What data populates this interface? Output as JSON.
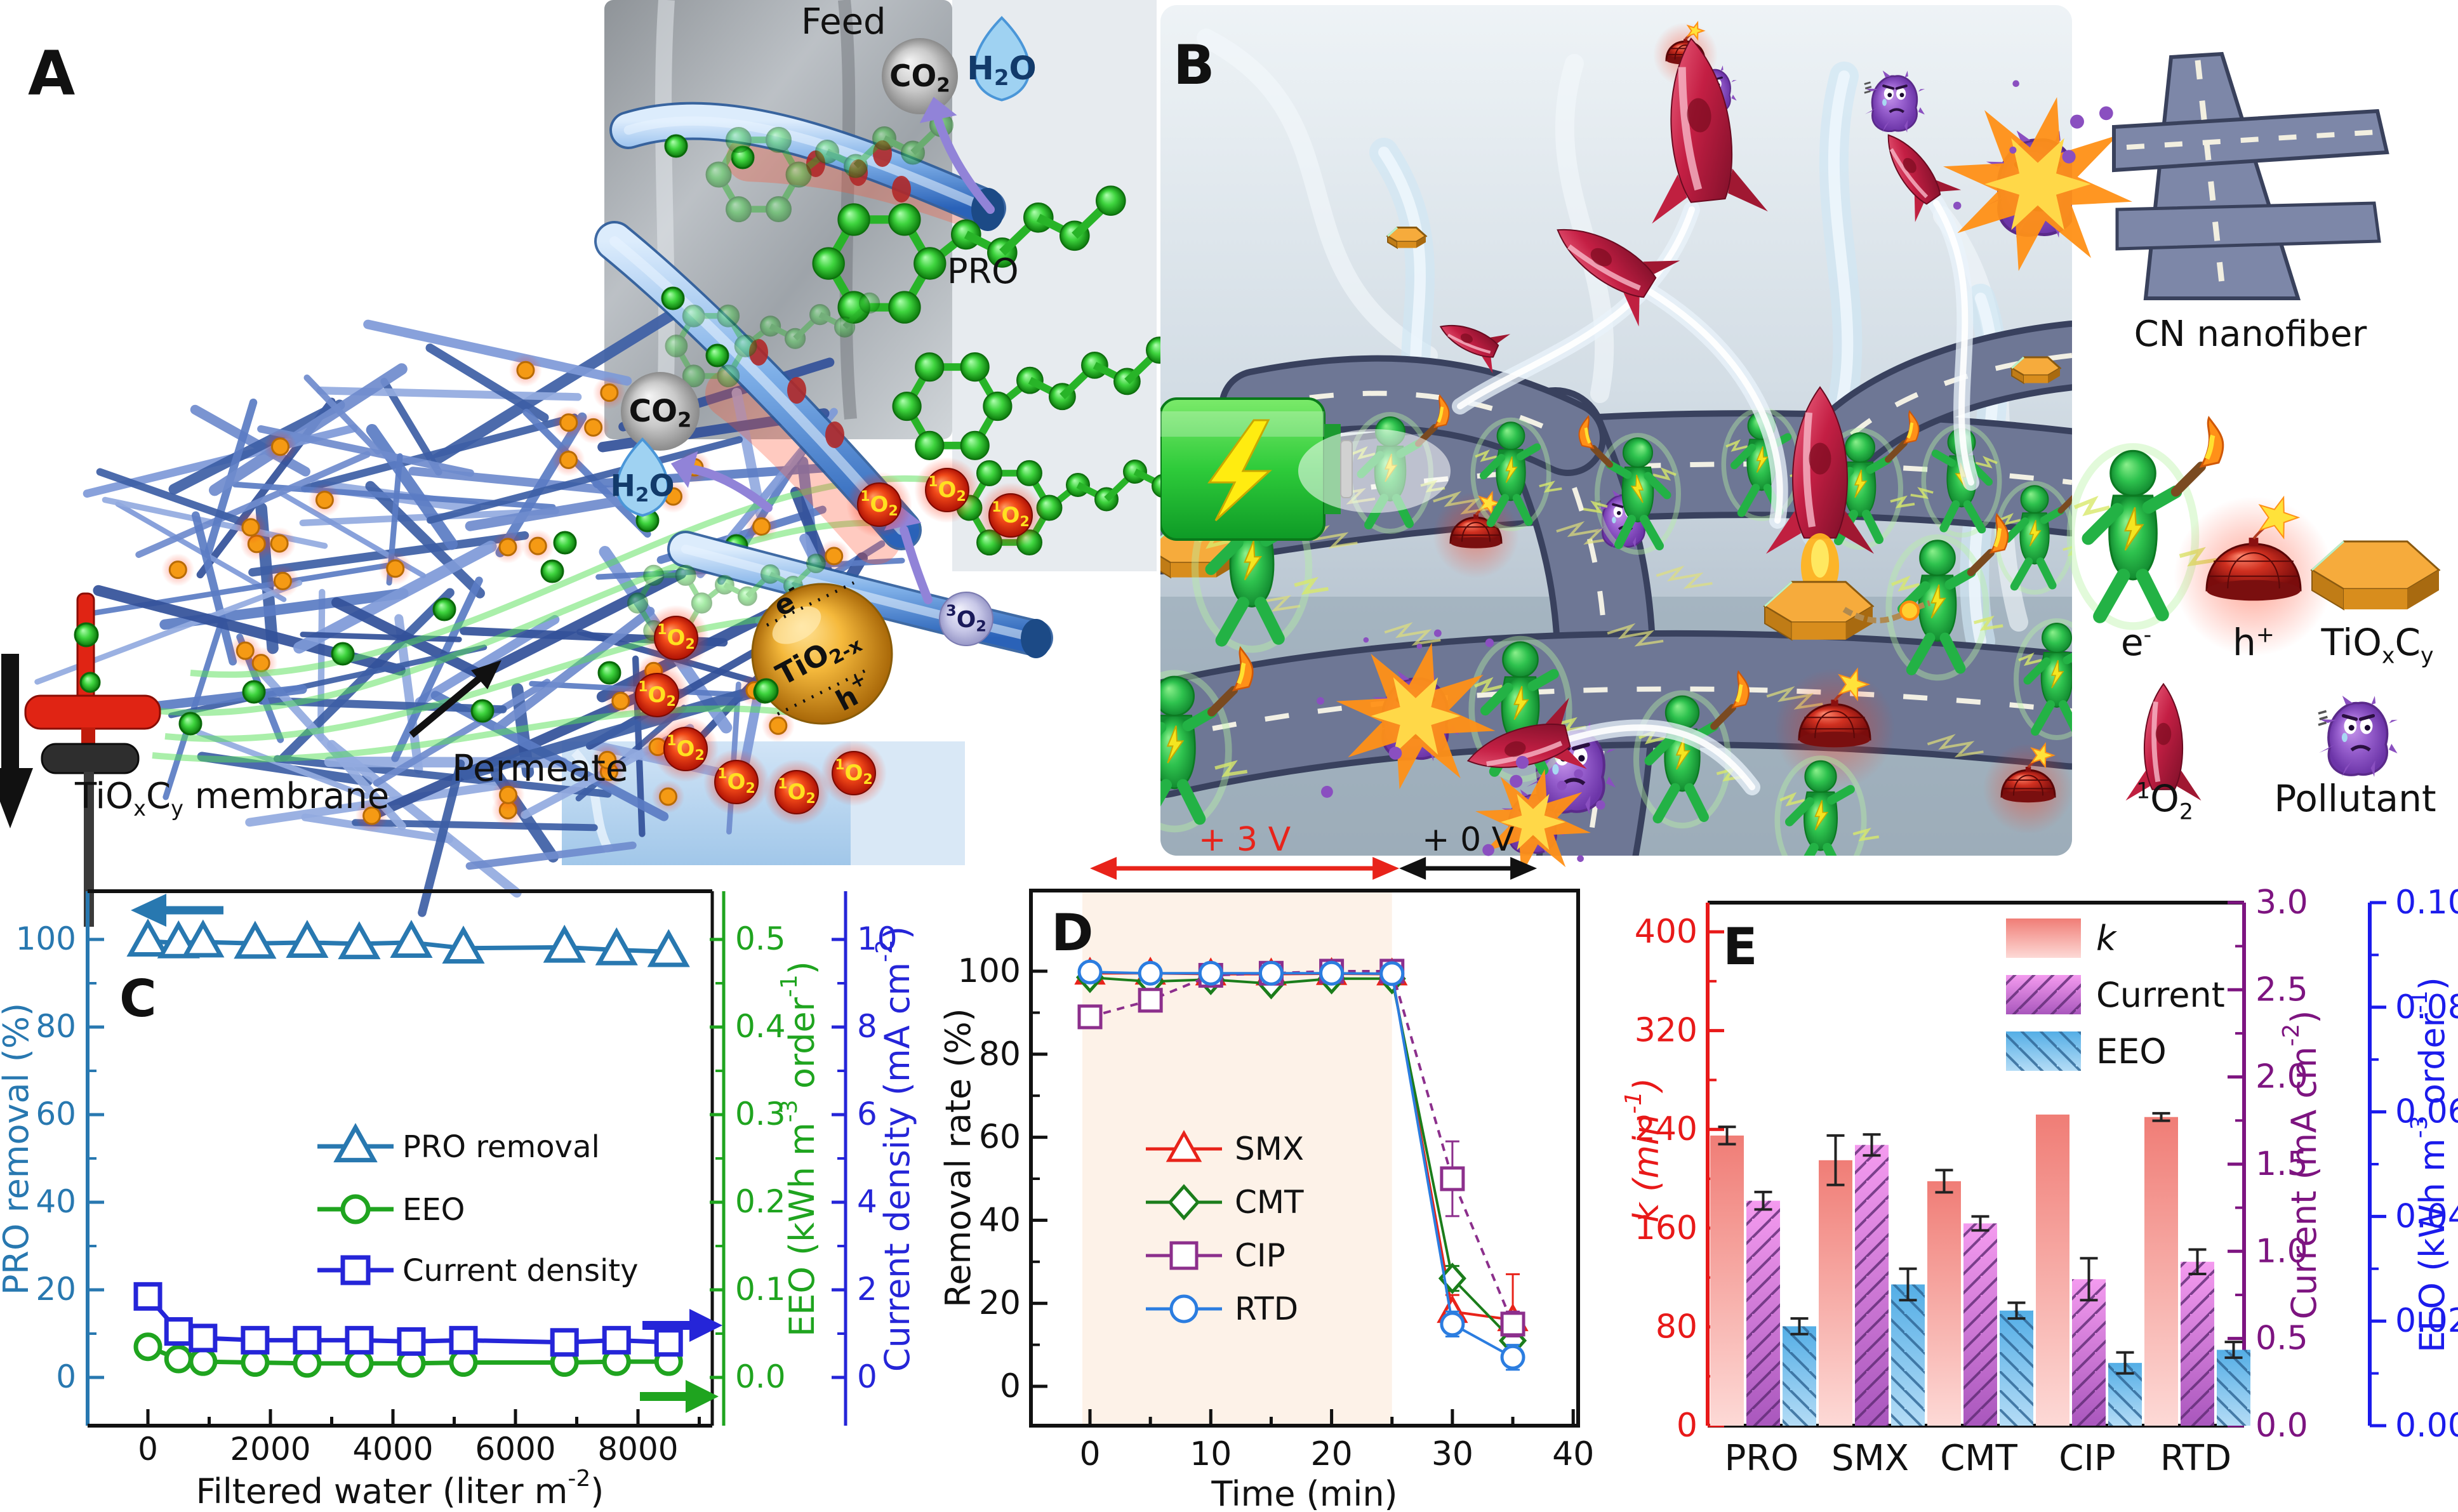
{
  "figure": {
    "panel_letters": {
      "a": "A",
      "b": "B",
      "c": "C",
      "d": "D",
      "e": "E"
    }
  },
  "panelA": {
    "feed": "Feed",
    "permeate": "Permeate",
    "membrane_label": "TiO_{x}C_{y} membrane",
    "pro": "PRO",
    "co2": "CO_{2}",
    "h2o": "H_{2}O",
    "tio2x": "TiO_{2-x}",
    "electron": "e^{-}",
    "hole": "h^{+}",
    "singlet_oxygen": "^{1}O_{2}",
    "triplet_oxygen": "^{3}O_{2}"
  },
  "panelB": {
    "legend": {
      "cn_nanofiber": "CN nanofiber",
      "electron": "e^{-}",
      "hole": "h^{+}",
      "tioxcy": "TiO_{x}C_{y}",
      "singlet_oxygen": "^{1}O_{2}",
      "pollutant": "Pollutant"
    }
  },
  "chart_data": [
    {
      "id": "C",
      "type": "line",
      "xlabel": "Filtered water (liter m^{-2})",
      "x_ticks": [
        0,
        2000,
        4000,
        6000,
        8000
      ],
      "x": [
        0,
        500,
        900,
        1750,
        2600,
        3450,
        4300,
        5150,
        6800,
        7650,
        8500
      ],
      "axes": {
        "left": {
          "label": "PRO removal (%)",
          "color": "#2878b0",
          "ticks": [
            0,
            20,
            40,
            60,
            80,
            100
          ]
        },
        "green": {
          "label": "EEO (kWh m^{-3} order^{-1})",
          "color": "#1fa41f",
          "ticks": [
            "0.0",
            "0.1",
            "0.2",
            "0.3",
            "0.4",
            "0.5"
          ]
        },
        "blue": {
          "label": "Current density (mA cm^{-2})",
          "color": "#2525d8",
          "ticks": [
            0,
            2,
            4,
            6,
            8,
            10
          ]
        }
      },
      "series": [
        {
          "name": "PRO removal",
          "axis": "left",
          "color": "#2878b0",
          "marker": "triangle",
          "values": [
            99.6,
            99.2,
            99.4,
            99.1,
            99.3,
            99.0,
            99.3,
            98.0,
            98.2,
            97.6,
            97.2
          ]
        },
        {
          "name": "EEO",
          "axis": "green",
          "color": "#1fa41f",
          "marker": "circle",
          "values": [
            0.035,
            0.021,
            0.018,
            0.017,
            0.016,
            0.016,
            0.016,
            0.017,
            0.017,
            0.018,
            0.018
          ]
        },
        {
          "name": "Current density",
          "axis": "blue",
          "color": "#2525d8",
          "marker": "square",
          "values": [
            1.85,
            1.05,
            0.9,
            0.85,
            0.85,
            0.85,
            0.82,
            0.85,
            0.8,
            0.85,
            0.8
          ]
        }
      ],
      "legend_order": [
        "PRO removal",
        "EEO",
        "Current density"
      ]
    },
    {
      "id": "D",
      "type": "line",
      "xlabel": "Time (min)",
      "ylabel": "Removal rate (%)",
      "x_ticks": [
        0,
        10,
        20,
        30,
        40
      ],
      "y_ticks": [
        0,
        20,
        40,
        60,
        80,
        100
      ],
      "x": [
        0,
        5,
        10,
        15,
        20,
        25,
        30,
        35
      ],
      "shaded_region": {
        "from": 0,
        "to": 25,
        "color": "#fdf2e8"
      },
      "annotations": [
        {
          "text": "+ 3 V",
          "color": "#e8231a",
          "from": 0,
          "to": 25.6
        },
        {
          "text": "+ 0 V",
          "color": "#111111",
          "from": 25.6,
          "to": 37
        }
      ],
      "series": [
        {
          "name": "SMX",
          "color": "#e8231a",
          "marker": "triangle",
          "dash": "",
          "values": [
            99.5,
            99.5,
            99.3,
            99.3,
            99.4,
            99.3,
            18,
            16
          ],
          "errors": [
            0,
            0,
            0,
            0,
            0,
            0,
            4,
            11
          ]
        },
        {
          "name": "CMT",
          "color": "#1b7d1b",
          "marker": "diamond",
          "dash": "",
          "values": [
            98.5,
            97.5,
            98.0,
            97.0,
            98.2,
            98.2,
            26,
            11
          ],
          "errors": [
            0,
            0,
            0,
            0,
            0,
            0,
            3,
            2
          ]
        },
        {
          "name": "CIP",
          "color": "#8c2f8c",
          "marker": "square",
          "dash": "12 10",
          "values": [
            89,
            93,
            99,
            99.5,
            100,
            100,
            50,
            15
          ],
          "errors": [
            2,
            2,
            0,
            0,
            0,
            0,
            9,
            3
          ]
        },
        {
          "name": "RTD",
          "color": "#2b7de0",
          "marker": "circle",
          "dash": "",
          "values": [
            99.8,
            99.5,
            99.5,
            99.5,
            99.5,
            99.4,
            15,
            7
          ],
          "errors": [
            0,
            0,
            0,
            0,
            0,
            0,
            3,
            3
          ]
        }
      ]
    },
    {
      "id": "E",
      "type": "bar",
      "categories": [
        "PRO",
        "SMX",
        "CMT",
        "CIP",
        "RTD"
      ],
      "axes": {
        "red": {
          "label": "k (min^{-1})",
          "italic_k": true,
          "color": "#e81919",
          "ticks": [
            0,
            80,
            160,
            240,
            320,
            400
          ]
        },
        "purple": {
          "label": "Current (mA cm^{-2})",
          "color": "#7d1480",
          "ticks": [
            "0.0",
            "0.5",
            "1.0",
            "1.5",
            "2.0",
            "2.5",
            "3.0"
          ]
        },
        "blue": {
          "label": "EEO (kWh m^{-3} order^{-1})",
          "color": "#1b1bec",
          "ticks": [
            "0.00",
            "0.02",
            "0.04",
            "0.06",
            "0.08",
            "0.10"
          ]
        }
      },
      "series": [
        {
          "name": "k",
          "axis": "red",
          "style": "salmon",
          "values": [
            235,
            215,
            198,
            252,
            250
          ],
          "errors": [
            7,
            20,
            9,
            0,
            3
          ]
        },
        {
          "name": "Current",
          "axis": "purple",
          "style": "magenta-hatch",
          "values": [
            1.29,
            1.61,
            1.16,
            0.84,
            0.94
          ],
          "errors": [
            0.05,
            0.06,
            0.04,
            0.12,
            0.07
          ]
        },
        {
          "name": "EEO",
          "axis": "blue",
          "style": "blue-hatch",
          "values": [
            0.019,
            0.027,
            0.022,
            0.012,
            0.0145
          ],
          "errors": [
            0.0015,
            0.003,
            0.0015,
            0.002,
            0.0015
          ]
        }
      ]
    }
  ]
}
